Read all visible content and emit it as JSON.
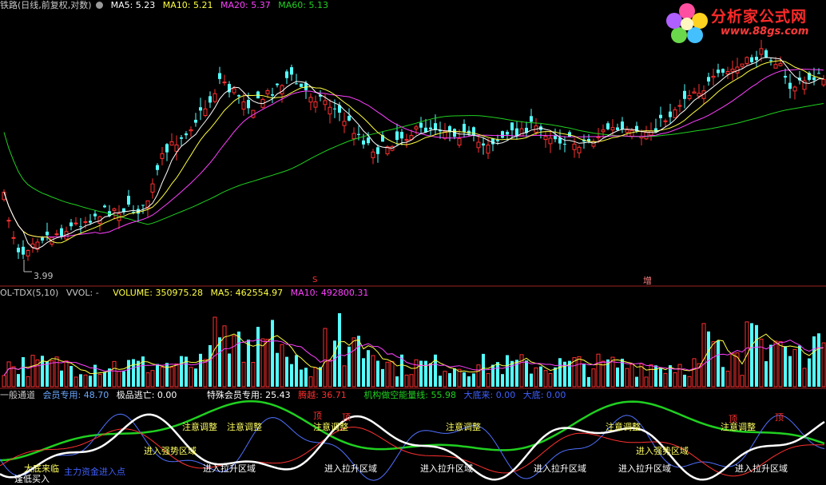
{
  "main_panel": {
    "title": "铁路(日线,前复权,对数)",
    "ma5": "MA5: 5.23",
    "ma10": "MA10: 5.21",
    "ma20": "MA20: 5.37",
    "ma60": "MA60: 5.13",
    "low_label": "3.99",
    "marker_s": "S",
    "marker_zeng": "增"
  },
  "logo": {
    "name": "分析家公式网",
    "url": "www.88gs.com"
  },
  "volume_panel": {
    "title": "OL-TDX(5,10)",
    "vvol": "VVOL: -",
    "volume": "VOLUME: 350975.28",
    "ma5": "MA5: 462554.97",
    "ma10": "MA10: 492800.31"
  },
  "indicator_panel": {
    "title": "一般通道",
    "member": "会员专用: 48.70",
    "escape": "极品逃亡: 0.00",
    "special": "特殊会员专用: 25.43",
    "jump": "腾越: 36.71",
    "inst": "机构做空能量线: 55.98",
    "bottom_come": "大底来: 0.00",
    "bottom": "大底: 0.00",
    "tags_pullback": [
      "注意调整",
      "注意调整",
      "注意调整",
      "注意调整",
      "注意调整",
      "注意调整"
    ],
    "tags_top": [
      "顶",
      "顶",
      "顶",
      "顶"
    ],
    "tags_strong": [
      "进入强势区域",
      "进入强势区域"
    ],
    "tags_lift": [
      "进入拉升区域",
      "进入拉升区域",
      "进入拉升区域",
      "进入拉升区域",
      "进入拉升区域",
      "进入拉升区域"
    ],
    "tag_buy": "逢低买入",
    "tag_big": "大底来临",
    "tag_blue": "主力资金进入点"
  },
  "colors": {
    "up": "#ff3030",
    "down": "#54ffff",
    "ma5": "#ffffff",
    "ma10": "#ffff40",
    "ma20": "#ff40ff",
    "ma60": "#20d020"
  }
}
